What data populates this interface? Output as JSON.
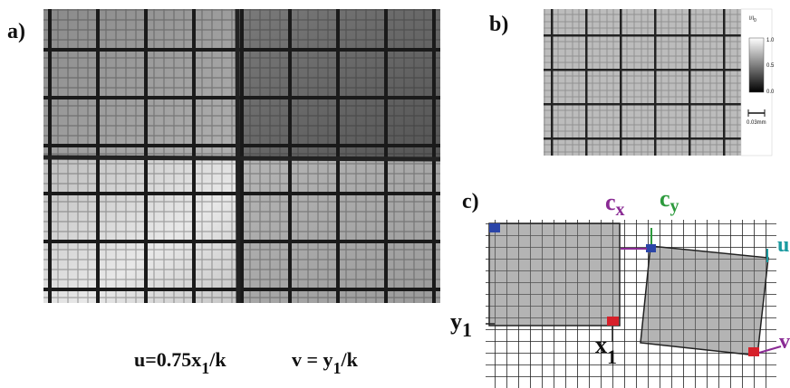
{
  "panels": {
    "a": "a)",
    "b": "b)",
    "c": "c)"
  },
  "colorbar": {
    "title": [
      "I/I",
      "0"
    ],
    "ticks": [
      "1.0",
      "0.5",
      "0.0"
    ],
    "scale": "0.03mm"
  },
  "labels": {
    "cx": [
      "c",
      "x"
    ],
    "cy": [
      "c",
      "y"
    ],
    "u": "u",
    "v": "v",
    "x1": [
      "x",
      "1"
    ],
    "y1": [
      "y",
      "1"
    ]
  },
  "equation": {
    "u": [
      "u=0.75x",
      "1",
      "/k"
    ],
    "v": [
      "v = y",
      "1",
      "/k"
    ]
  }
}
